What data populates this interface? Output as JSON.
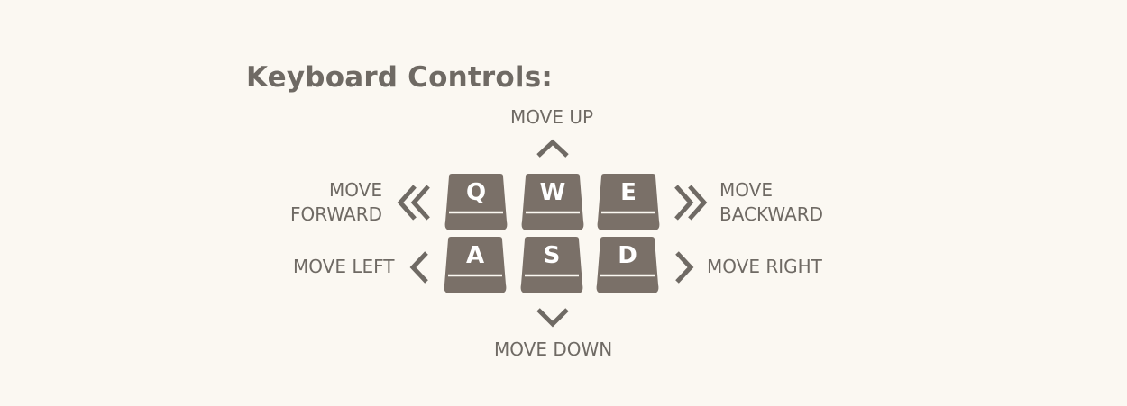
{
  "title": "Keyboard Controls:",
  "labels": {
    "up": "MOVE UP",
    "down": "MOVE DOWN",
    "left": "MOVE LEFT",
    "right": "MOVE RIGHT",
    "forward_line1": "MOVE",
    "forward_line2": "FORWARD",
    "backward_line1": "MOVE",
    "backward_line2": "BACKWARD"
  },
  "keys": {
    "q": "Q",
    "w": "W",
    "e": "E",
    "a": "A",
    "s": "S",
    "d": "D"
  },
  "icons": {
    "up": "chevron-up-icon",
    "down": "chevron-down-icon",
    "left": "chevron-left-icon",
    "right": "chevron-right-icon",
    "forward": "double-chevron-left-icon",
    "backward": "double-chevron-right-icon"
  },
  "colors": {
    "background": "#fbf8f2",
    "text": "#6f6a64",
    "key_fill": "#7a7068",
    "key_letter": "#ffffff"
  }
}
